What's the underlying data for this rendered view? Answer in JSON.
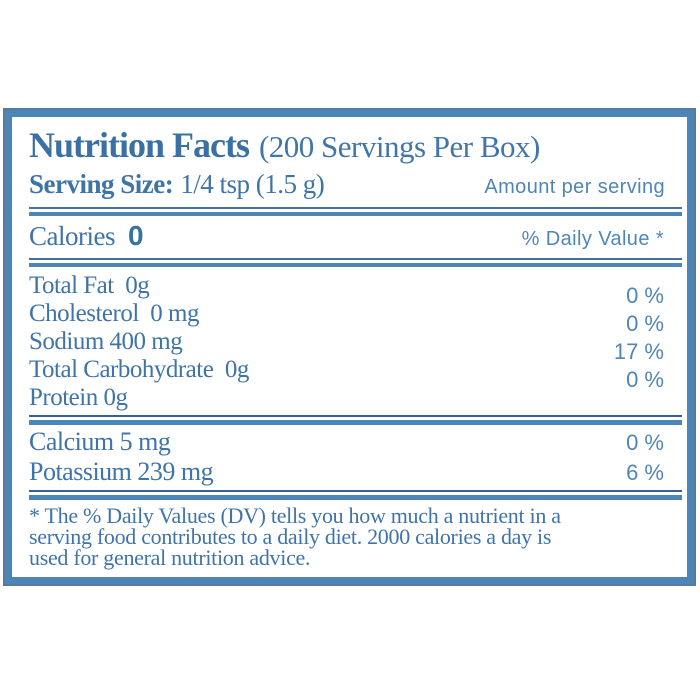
{
  "colors": {
    "text_blue": "#3e74a8",
    "accent_sans_blue": "#4f86b7",
    "rule_blue": "#4d85b6",
    "thin_line_dark_blue": "#36608f",
    "border_outer_blue": "#5a79a0",
    "background": "#ffffff"
  },
  "label": {
    "title": "Nutrition Facts",
    "servings_note": "(200 Servings Per Box)",
    "serving_size_label": "Serving Size:",
    "serving_size_value": "1/4 tsp (1.5 g)",
    "amount_per_serving": "Amount per serving",
    "calories_label": "Calories",
    "calories_value": "0",
    "daily_value_header": "% Daily Value *",
    "nutrients": [
      {
        "name": "Total Fat  0g",
        "dv": "0 %"
      },
      {
        "name": "Cholesterol  0 mg",
        "dv": "0 %"
      },
      {
        "name": "Sodium 400 mg",
        "dv": "17 %"
      },
      {
        "name": "Total Carbohydrate  0g",
        "dv": "0 %"
      },
      {
        "name": "Protein 0g",
        "dv": ""
      }
    ],
    "minerals": [
      {
        "name": "Calcium 5 mg",
        "dv": "0 %"
      },
      {
        "name": "Potassium 239 mg",
        "dv": "6 %"
      }
    ],
    "footnote_lines": [
      "* The % Daily Values (DV) tells you how much a nutrient in a",
      "serving food contributes to a daily diet. 2000 calories a day is",
      "used for general nutrition advice."
    ]
  }
}
